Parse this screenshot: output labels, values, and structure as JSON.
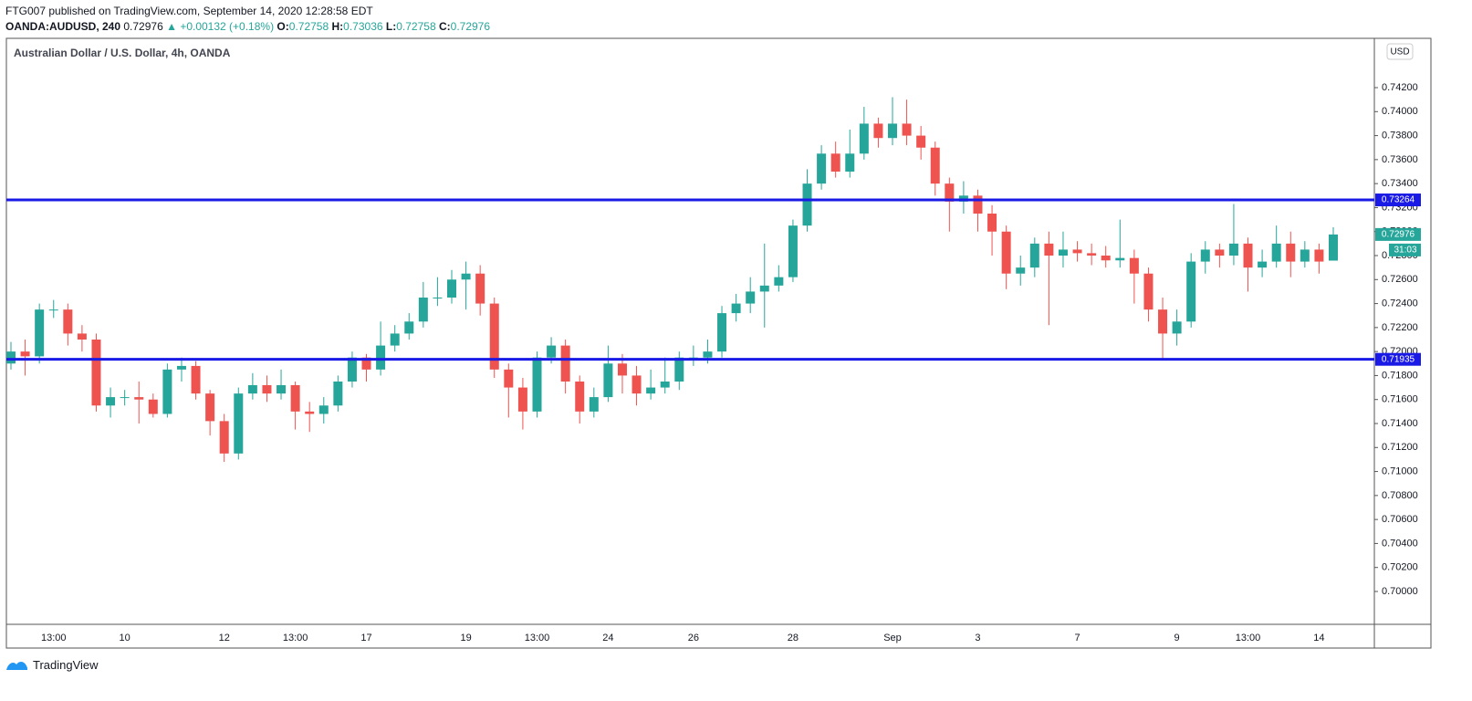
{
  "header": {
    "line1": "FTG007 published on TradingView.com, September 14, 2020 12:28:58 EDT",
    "symbol": "OANDA:AUDUSD, 240",
    "price": "0.72976",
    "change": "▲ +0.00132 (+0.18%)",
    "o_label": "O:",
    "o_value": "0.72758",
    "h_label": "H:",
    "h_value": "0.73036",
    "l_label": "L:",
    "l_value": "0.72758",
    "c_label": "C:",
    "c_value": "0.72976"
  },
  "footer": {
    "brand": "TradingView"
  },
  "chart_data": {
    "type": "candlestick",
    "title": "Australian Dollar / U.S. Dollar, 4h, OANDA",
    "currency": "USD",
    "up_color": "#26a69a",
    "down_color": "#ef5350",
    "level_color": "#1a1ae6",
    "countdown": "31:03",
    "categories": [
      null,
      null,
      null,
      "13:00",
      null,
      null,
      null,
      null,
      "10",
      null,
      null,
      null,
      null,
      null,
      null,
      "12",
      null,
      null,
      null,
      null,
      "13:00",
      null,
      null,
      null,
      null,
      "17",
      null,
      null,
      null,
      null,
      null,
      null,
      "19",
      null,
      null,
      null,
      null,
      "13:00",
      null,
      null,
      null,
      null,
      "24",
      null,
      null,
      null,
      null,
      null,
      "26",
      null,
      null,
      null,
      null,
      null,
      null,
      "28",
      null,
      null,
      null,
      null,
      null,
      null,
      "Sep",
      null,
      null,
      null,
      null,
      null,
      "3",
      null,
      null,
      null,
      null,
      null,
      null,
      "7",
      null,
      null,
      null,
      null,
      null,
      null,
      "9",
      null,
      null,
      null,
      null,
      "13:00",
      null,
      null,
      null,
      null,
      "14",
      null
    ],
    "open": [
      0.719,
      0.72,
      0.7196,
      0.7235,
      0.7235,
      0.7215,
      0.721,
      0.7155,
      0.7162,
      0.7162,
      0.716,
      0.7148,
      0.7185,
      0.7188,
      0.7165,
      0.7142,
      0.7115,
      0.7165,
      0.7172,
      0.7165,
      0.7172,
      0.715,
      0.7148,
      0.7155,
      0.7175,
      0.7195,
      0.7185,
      0.7205,
      0.7215,
      0.7225,
      0.7245,
      0.7245,
      0.726,
      0.7265,
      0.724,
      0.7185,
      0.717,
      0.715,
      0.7195,
      0.7205,
      0.7175,
      0.715,
      0.7162,
      0.719,
      0.718,
      0.7165,
      0.717,
      0.7175,
      0.7195,
      0.7195,
      0.72,
      0.7232,
      0.724,
      0.725,
      0.7255,
      0.7262,
      0.7305,
      0.734,
      0.7365,
      0.735,
      0.7365,
      0.739,
      0.7378,
      0.739,
      0.738,
      0.737,
      0.734,
      0.7325,
      0.733,
      0.7315,
      0.73,
      0.7265,
      0.727,
      0.729,
      0.728,
      0.7285,
      0.7282,
      0.728,
      0.7276,
      0.7278,
      0.7265,
      0.7235,
      0.7215,
      0.7225,
      0.7275,
      0.7285,
      0.728,
      0.729,
      0.727,
      0.7275,
      0.729,
      0.7275,
      0.7285,
      0.72758
    ],
    "high": [
      0.7208,
      0.721,
      0.724,
      0.7243,
      0.724,
      0.7222,
      0.7215,
      0.717,
      0.7168,
      0.7175,
      0.7165,
      0.719,
      0.7195,
      0.7192,
      0.7168,
      0.7148,
      0.717,
      0.7182,
      0.718,
      0.7185,
      0.7175,
      0.7158,
      0.7162,
      0.718,
      0.72,
      0.7198,
      0.7225,
      0.7222,
      0.7232,
      0.7258,
      0.7262,
      0.7268,
      0.7275,
      0.7272,
      0.7245,
      0.719,
      0.7178,
      0.72,
      0.7212,
      0.721,
      0.718,
      0.717,
      0.7205,
      0.7198,
      0.7188,
      0.7185,
      0.7195,
      0.72,
      0.7205,
      0.721,
      0.7238,
      0.7248,
      0.7262,
      0.729,
      0.7272,
      0.731,
      0.7352,
      0.7372,
      0.7375,
      0.7385,
      0.7404,
      0.7395,
      0.7412,
      0.741,
      0.7388,
      0.7375,
      0.7345,
      0.7342,
      0.7335,
      0.7322,
      0.7305,
      0.728,
      0.7295,
      0.73,
      0.73,
      0.7292,
      0.729,
      0.7288,
      0.731,
      0.7285,
      0.727,
      0.7245,
      0.7235,
      0.7282,
      0.7292,
      0.729,
      0.7323,
      0.7295,
      0.7285,
      0.7305,
      0.73,
      0.7292,
      0.729,
      0.73036
    ],
    "low": [
      0.7185,
      0.718,
      0.719,
      0.7228,
      0.7205,
      0.72,
      0.715,
      0.7145,
      0.7155,
      0.714,
      0.7145,
      0.7145,
      0.7175,
      0.716,
      0.713,
      0.7108,
      0.711,
      0.716,
      0.7158,
      0.716,
      0.7135,
      0.7133,
      0.714,
      0.715,
      0.717,
      0.7175,
      0.718,
      0.72,
      0.721,
      0.722,
      0.7238,
      0.724,
      0.7235,
      0.723,
      0.7178,
      0.7145,
      0.7135,
      0.7145,
      0.719,
      0.7165,
      0.714,
      0.7145,
      0.7158,
      0.7165,
      0.7155,
      0.716,
      0.7165,
      0.7168,
      0.7188,
      0.719,
      0.7195,
      0.7225,
      0.7232,
      0.722,
      0.725,
      0.7258,
      0.73,
      0.7335,
      0.7345,
      0.7345,
      0.736,
      0.737,
      0.7372,
      0.7372,
      0.736,
      0.733,
      0.73,
      0.7315,
      0.73,
      0.728,
      0.7252,
      0.7255,
      0.7262,
      0.7222,
      0.727,
      0.7275,
      0.7272,
      0.727,
      0.727,
      0.724,
      0.7225,
      0.7193,
      0.7205,
      0.722,
      0.7265,
      0.727,
      0.7272,
      0.725,
      0.7262,
      0.727,
      0.7262,
      0.727,
      0.7265,
      0.72758
    ],
    "close": [
      0.72,
      0.7196,
      0.7235,
      0.7235,
      0.7215,
      0.721,
      0.7155,
      0.7162,
      0.7162,
      0.716,
      0.7148,
      0.7185,
      0.7188,
      0.7165,
      0.7142,
      0.7115,
      0.7165,
      0.7172,
      0.7165,
      0.7172,
      0.715,
      0.7148,
      0.7155,
      0.7175,
      0.7195,
      0.7185,
      0.7205,
      0.7215,
      0.7225,
      0.7245,
      0.7245,
      0.726,
      0.7265,
      0.724,
      0.7185,
      0.717,
      0.715,
      0.7195,
      0.7205,
      0.7175,
      0.715,
      0.7162,
      0.719,
      0.718,
      0.7165,
      0.717,
      0.7175,
      0.7195,
      0.7195,
      0.72,
      0.7232,
      0.724,
      0.725,
      0.7255,
      0.7262,
      0.7305,
      0.734,
      0.7365,
      0.735,
      0.7365,
      0.739,
      0.7378,
      0.739,
      0.738,
      0.737,
      0.734,
      0.7325,
      0.733,
      0.7315,
      0.73,
      0.7265,
      0.727,
      0.729,
      0.728,
      0.7285,
      0.7282,
      0.728,
      0.7276,
      0.7278,
      0.7265,
      0.7235,
      0.7215,
      0.7225,
      0.7275,
      0.7285,
      0.728,
      0.729,
      0.727,
      0.7275,
      0.729,
      0.7275,
      0.7285,
      0.7275,
      0.72976
    ],
    "levels": [
      0.73264,
      0.71935
    ],
    "ylim": [
      0.69726,
      0.74611
    ],
    "yticks": [
      {
        "value": 0.7,
        "label": "0.70000"
      },
      {
        "value": 0.702,
        "label": "0.70200"
      },
      {
        "value": 0.704,
        "label": "0.70400"
      },
      {
        "value": 0.706,
        "label": "0.70600"
      },
      {
        "value": 0.708,
        "label": "0.70800"
      },
      {
        "value": 0.71,
        "label": "0.71000"
      },
      {
        "value": 0.712,
        "label": "0.71200"
      },
      {
        "value": 0.714,
        "label": "0.71400"
      },
      {
        "value": 0.716,
        "label": "0.71600"
      },
      {
        "value": 0.718,
        "label": "0.71800"
      },
      {
        "value": 0.72,
        "label": "0.72000"
      },
      {
        "value": 0.722,
        "label": "0.72200"
      },
      {
        "value": 0.724,
        "label": "0.72400"
      },
      {
        "value": 0.726,
        "label": "0.72600"
      },
      {
        "value": 0.728,
        "label": "0.72800"
      },
      {
        "value": 0.73,
        "label": "0.73000"
      },
      {
        "value": 0.732,
        "label": "0.73200"
      },
      {
        "value": 0.734,
        "label": "0.73400"
      },
      {
        "value": 0.736,
        "label": "0.73600"
      },
      {
        "value": 0.738,
        "label": "0.73800"
      },
      {
        "value": 0.74,
        "label": "0.74000"
      },
      {
        "value": 0.742,
        "label": "0.74200"
      }
    ]
  }
}
